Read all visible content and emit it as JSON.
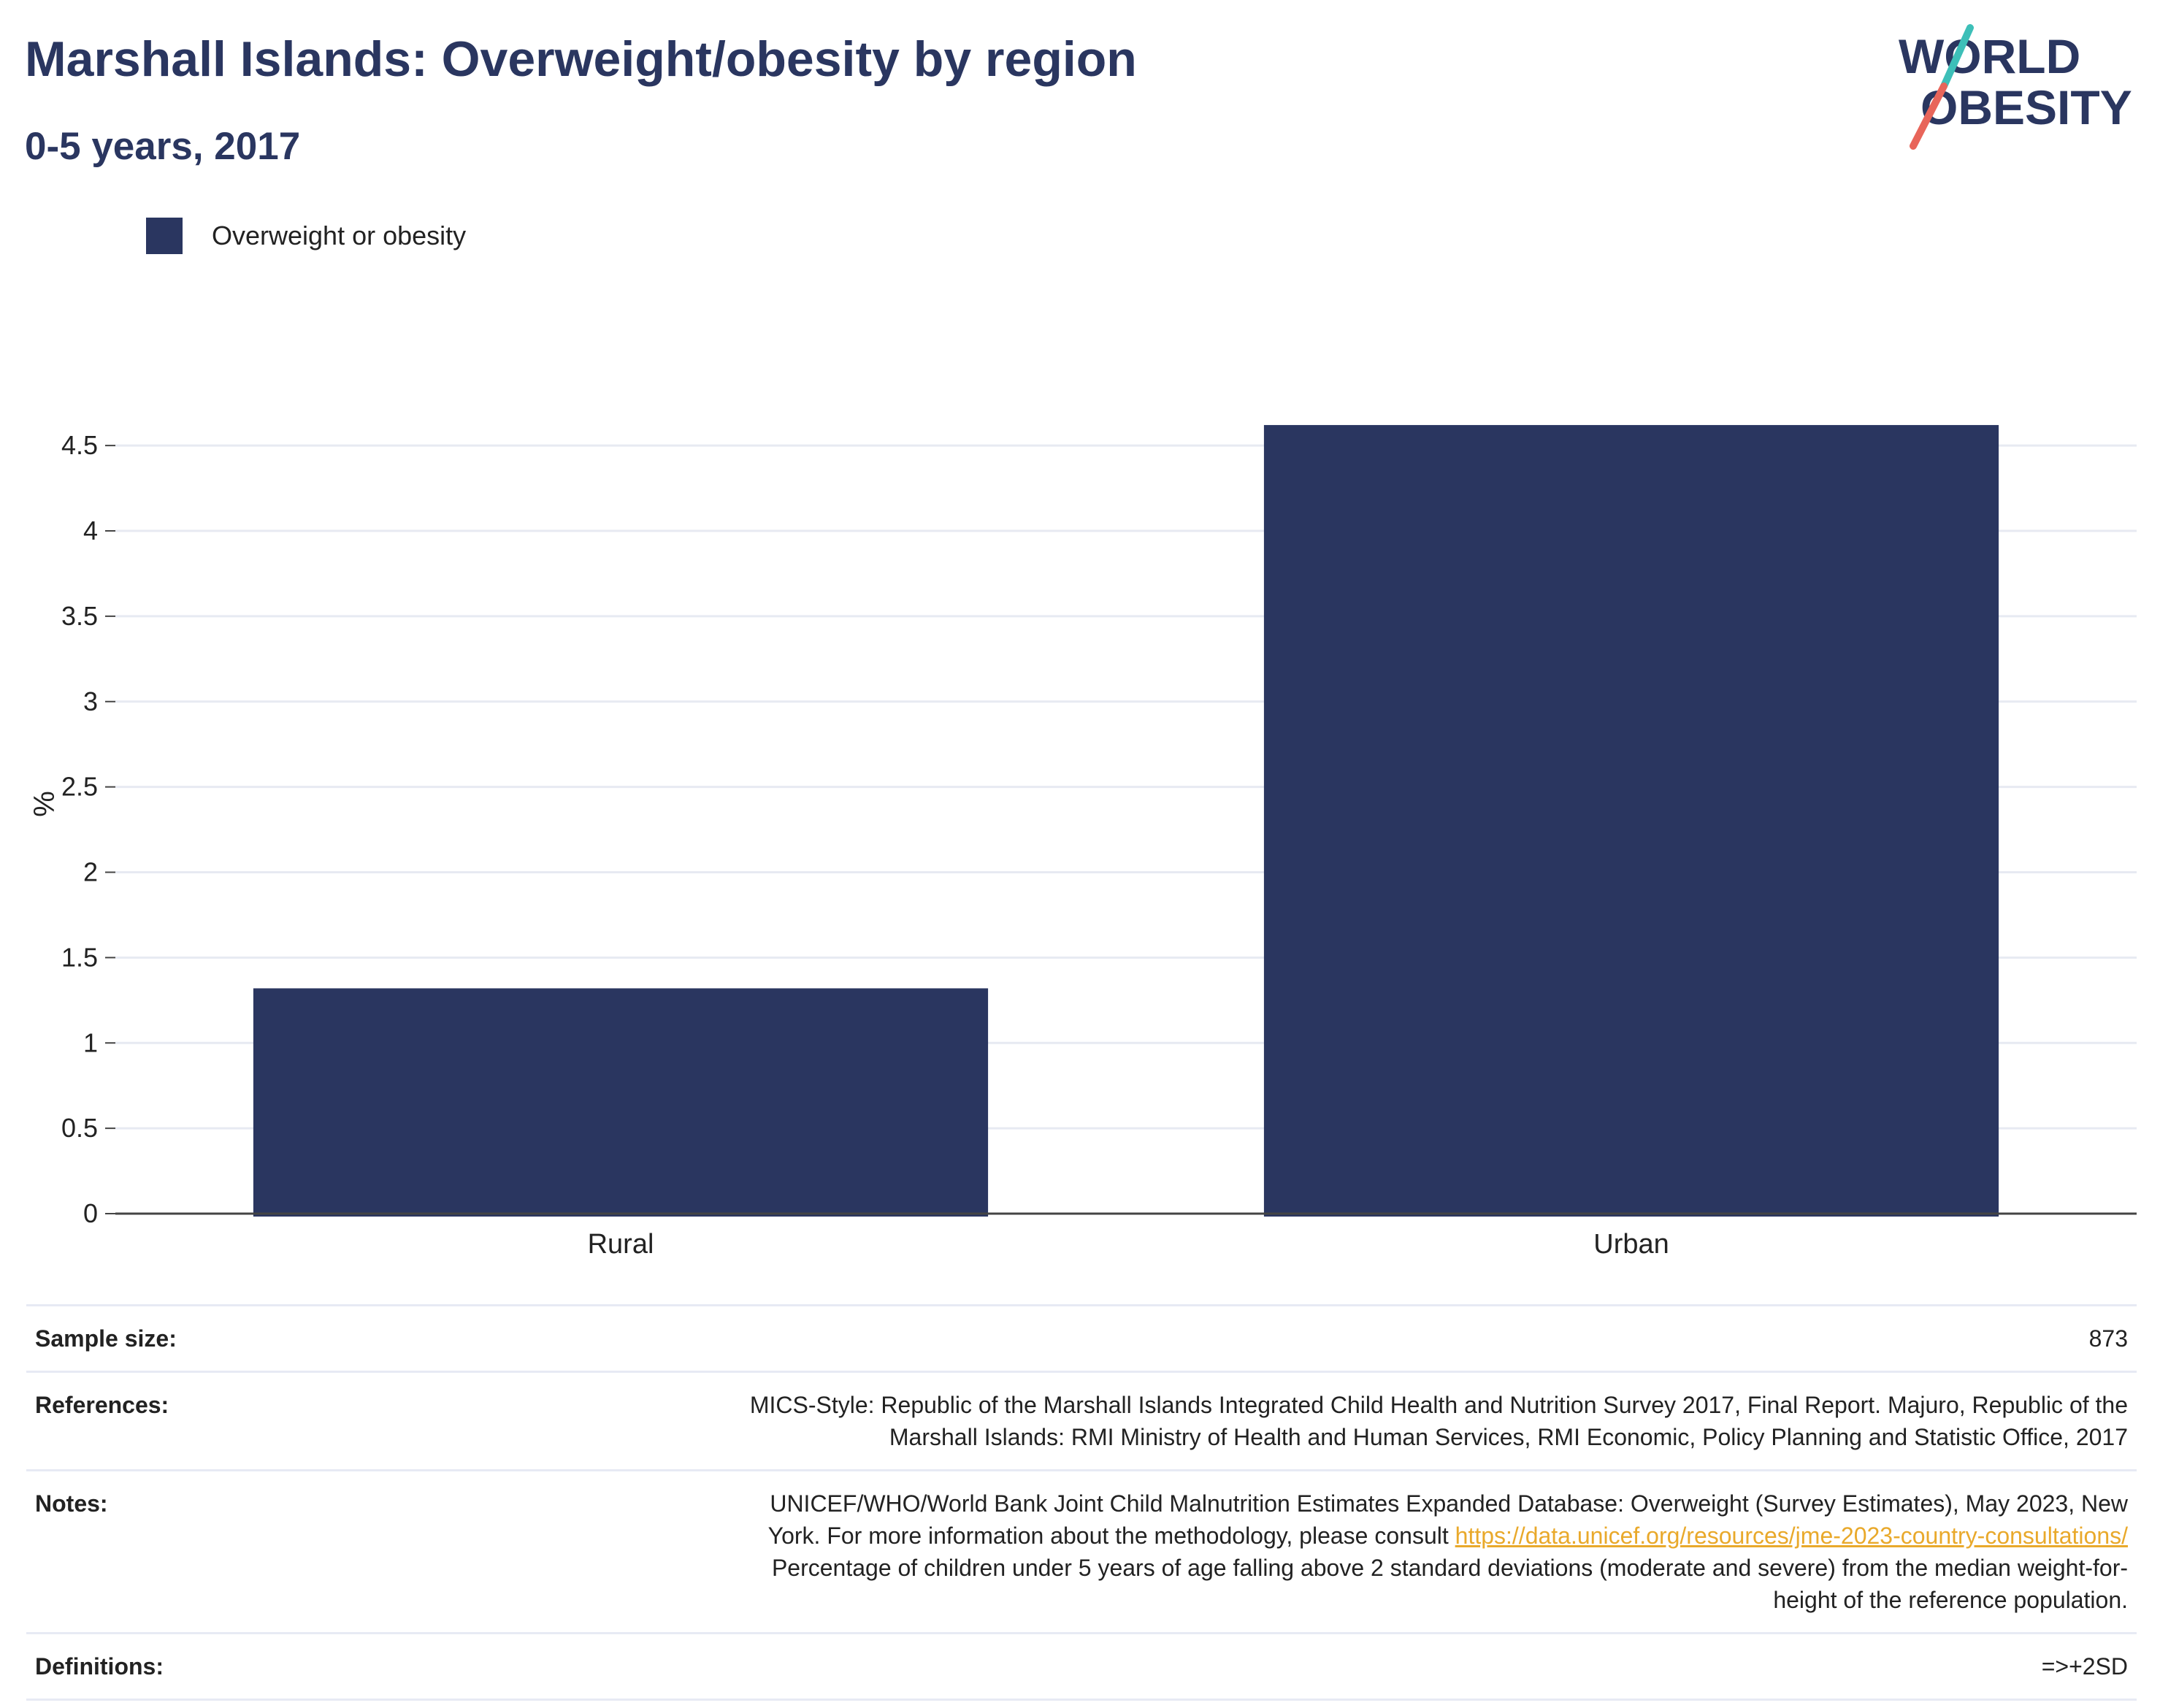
{
  "header": {
    "title": "Marshall Islands: Overweight/obesity by region",
    "subtitle": "0-5 years, 2017"
  },
  "logo": {
    "line1": "WORLD",
    "line2": "OBESITY",
    "colors": {
      "text": "#2a3660",
      "slash_top": "#3dbfb8",
      "slash_bottom": "#e8655a"
    }
  },
  "legend": {
    "label": "Overweight or obesity",
    "color": "#2a3660"
  },
  "chart_data": {
    "type": "bar",
    "categories": [
      "Rural",
      "Urban"
    ],
    "series": [
      {
        "name": "Overweight or obesity",
        "values": [
          1.32,
          4.62
        ],
        "color": "#2a3660"
      }
    ],
    "ylabel": "%",
    "xlabel": "",
    "ylim": [
      0,
      4.8
    ],
    "yticks": [
      0,
      0.5,
      1,
      1.5,
      2,
      2.5,
      3,
      3.5,
      4,
      4.5
    ],
    "ytick_labels": [
      "0",
      "0.5",
      "1",
      "1.5",
      "2",
      "2.5",
      "3",
      "3.5",
      "4",
      "4.5"
    ],
    "grid": true,
    "legend_position": "top-left"
  },
  "meta": {
    "sample_size": {
      "label": "Sample size:",
      "value": "873"
    },
    "references": {
      "label": "References:",
      "line1": "MICS-Style: Republic of the Marshall Islands Integrated Child Health and Nutrition Survey 2017, Final Report. Majuro, Republic of the",
      "line2": "Marshall Islands: RMI Ministry of Health and Human Services, RMI Economic, Policy Planning and Statistic Office, 2017"
    },
    "notes": {
      "label": "Notes:",
      "line1": "UNICEF/WHO/World Bank Joint Child Malnutrition Estimates Expanded Database: Overweight (Survey Estimates), May 2023, New",
      "line2_prefix": "York. For more information about the methodology, please consult",
      "link": "https://data.unicef.org/resources/jme-2023-country-consultations/",
      "line3": "Percentage of children under 5 years of age falling above 2 standard deviations (moderate and severe) from the median weight-for-",
      "line4": "height of the reference population."
    },
    "definitions": {
      "label": "Definitions:",
      "value": "=>+2SD"
    }
  }
}
